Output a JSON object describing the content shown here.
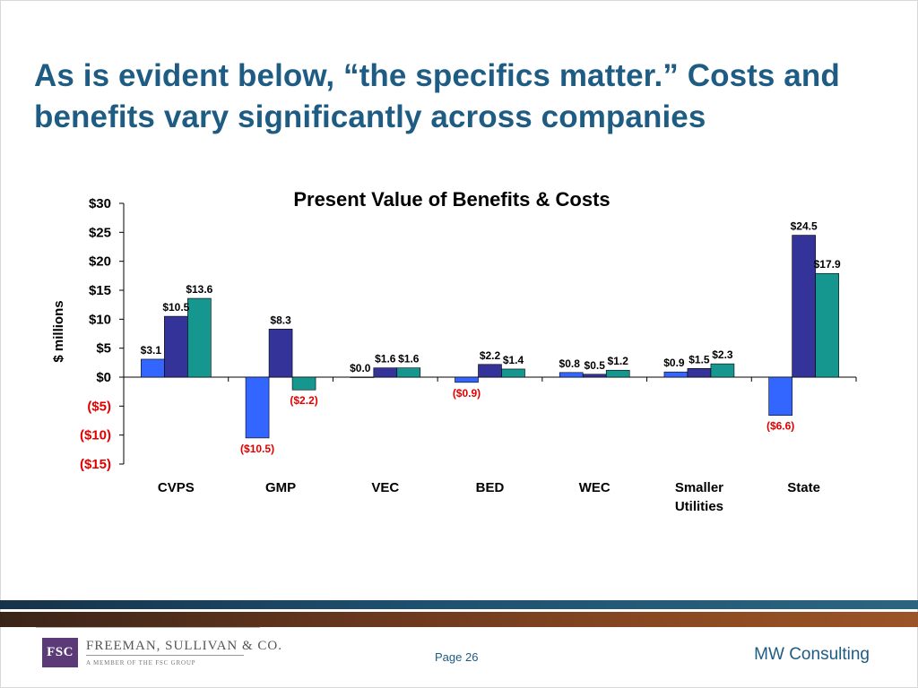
{
  "slide": {
    "title": "As is evident below, “the specifics matter.”  Costs and benefits vary significantly across companies",
    "page_label": "Page 26",
    "brand": "MW Consulting",
    "logo": {
      "mark": "FSC",
      "name": "FREEMAN, SULLIVAN & CO.",
      "tagline": "A MEMBER OF THE FSC GROUP"
    }
  },
  "colors": {
    "title": "#1f5c83",
    "series1": "#3366ff",
    "series2": "#333399",
    "series3": "#15968e",
    "negative_label": "#e00000",
    "axis": "#000000"
  },
  "chart_data": {
    "type": "bar",
    "title": "Present Value of Benefits & Costs",
    "ylabel": "$ millions",
    "xlabel": "",
    "ylim": [
      -15,
      30
    ],
    "y_ticks": [
      {
        "value": 30,
        "label": "$30"
      },
      {
        "value": 25,
        "label": "$25"
      },
      {
        "value": 20,
        "label": "$20"
      },
      {
        "value": 15,
        "label": "$15"
      },
      {
        "value": 10,
        "label": "$10"
      },
      {
        "value": 5,
        "label": "$5"
      },
      {
        "value": 0,
        "label": "$0"
      },
      {
        "value": -5,
        "label": "($5)"
      },
      {
        "value": -10,
        "label": "($10)"
      },
      {
        "value": -15,
        "label": "($15)"
      }
    ],
    "grid": false,
    "legend": "none",
    "categories": [
      "CVPS",
      "GMP",
      "VEC",
      "BED",
      "WEC",
      "Smaller Utilities",
      "State"
    ],
    "series": [
      {
        "values": [
          3.1,
          -10.5,
          0.0,
          -0.9,
          0.8,
          0.9,
          -6.6
        ],
        "labels": [
          "$3.1",
          "($10.5)",
          "$0.0",
          "($0.9)",
          "$0.8",
          "$0.9",
          "($6.6)"
        ]
      },
      {
        "values": [
          10.5,
          8.3,
          1.6,
          2.2,
          0.5,
          1.5,
          24.5
        ],
        "labels": [
          "$10.5",
          "$8.3",
          "$1.6",
          "$2.2",
          "$0.5",
          "$1.5",
          "$24.5"
        ]
      },
      {
        "values": [
          13.6,
          -2.2,
          1.6,
          1.4,
          1.2,
          2.3,
          17.9
        ],
        "labels": [
          "$13.6",
          "($2.2)",
          "$1.6",
          "$1.4",
          "$1.2",
          "$2.3",
          "$17.9"
        ]
      }
    ]
  }
}
